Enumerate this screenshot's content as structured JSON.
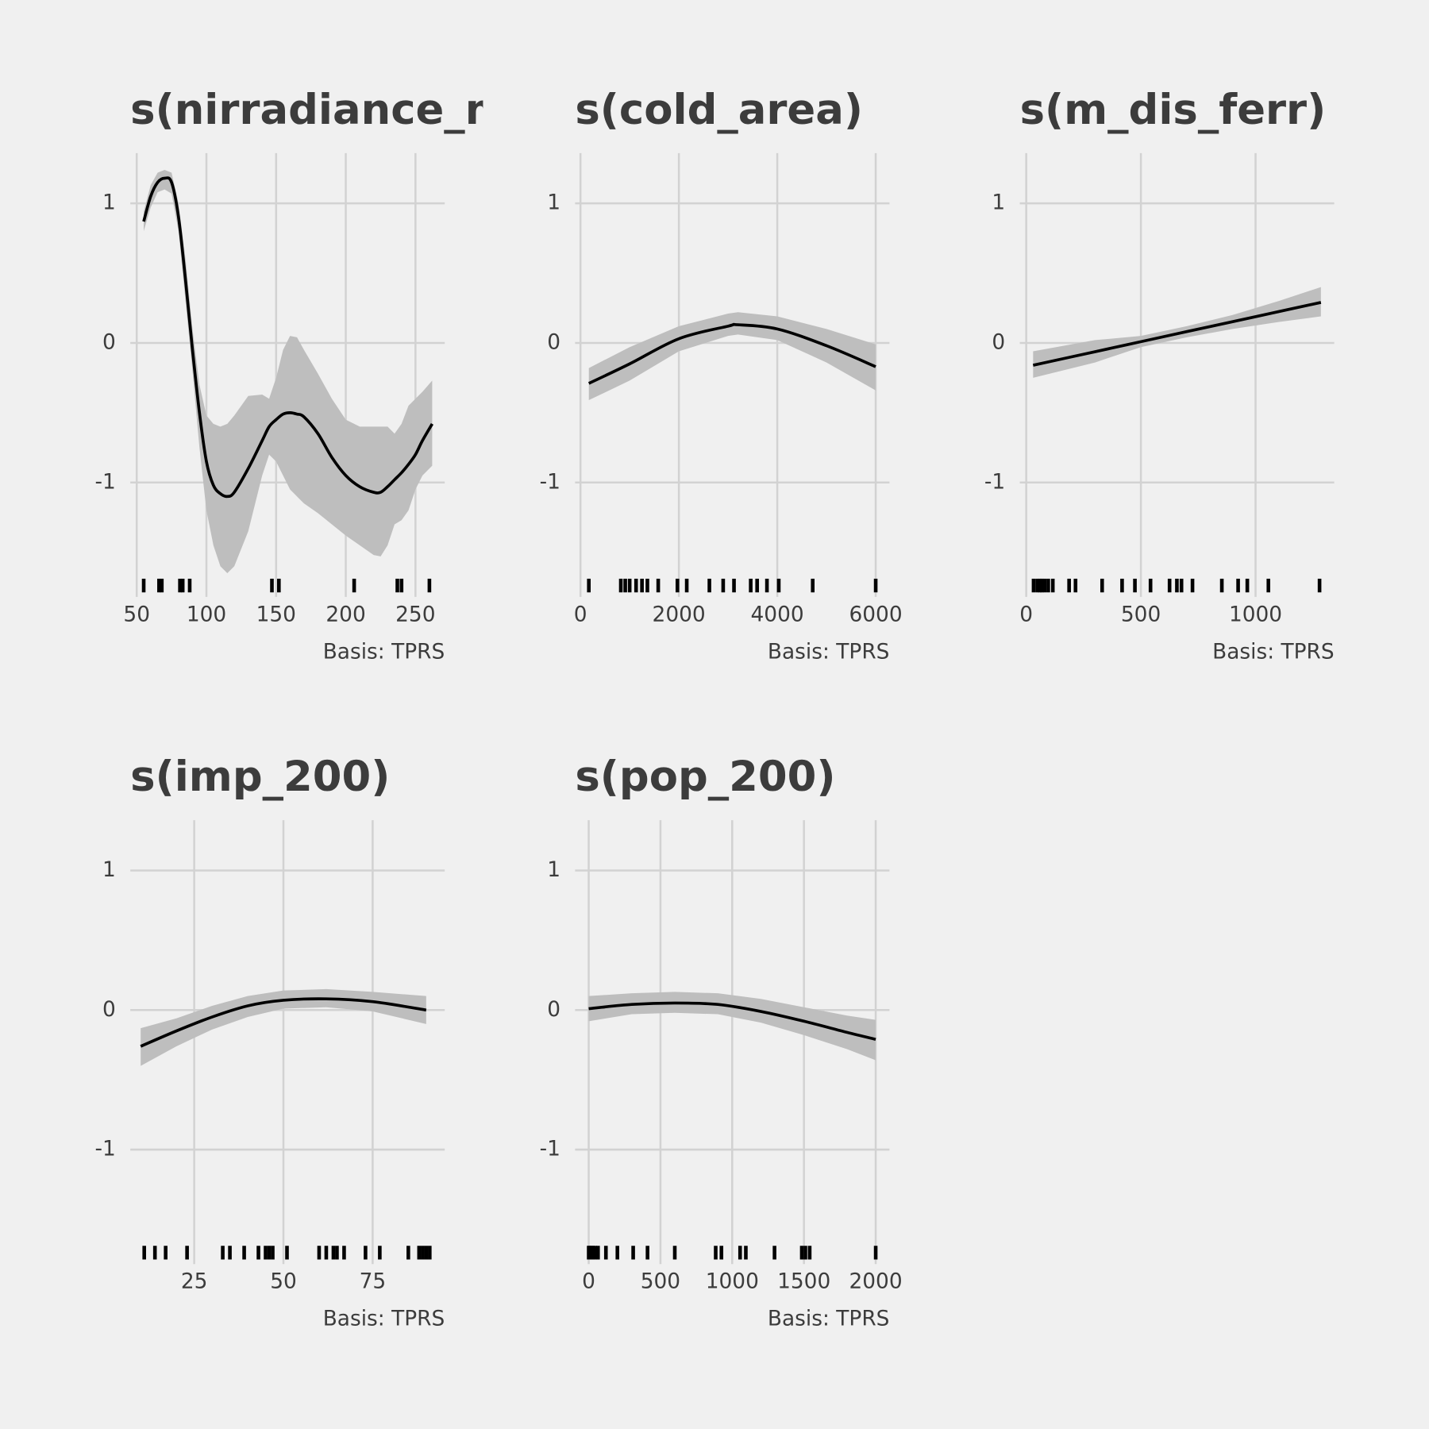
{
  "chart_data": [
    {
      "type": "line",
      "title": "s(nirradiance_me",
      "caption": "Basis: TPRS",
      "color": "#000000",
      "band_color": "#bebebe",
      "grid": true,
      "x": [
        55,
        60,
        65,
        70,
        75,
        80,
        85,
        90,
        95,
        100,
        105,
        110,
        115,
        120,
        130,
        140,
        145,
        150,
        155,
        160,
        165,
        170,
        180,
        190,
        200,
        210,
        220,
        225,
        230,
        235,
        240,
        245,
        250,
        255,
        262
      ],
      "values": [
        0.87,
        1.05,
        1.15,
        1.18,
        1.15,
        0.9,
        0.45,
        -0.05,
        -0.5,
        -0.85,
        -1.02,
        -1.08,
        -1.1,
        -1.07,
        -0.9,
        -0.7,
        -0.6,
        -0.55,
        -0.51,
        -0.5,
        -0.51,
        -0.53,
        -0.65,
        -0.82,
        -0.95,
        -1.03,
        -1.07,
        -1.07,
        -1.03,
        -0.98,
        -0.93,
        -0.87,
        -0.8,
        -0.7,
        -0.58
      ],
      "upper": [
        0.94,
        1.13,
        1.22,
        1.24,
        1.22,
        1.0,
        0.6,
        0.1,
        -0.3,
        -0.52,
        -0.58,
        -0.6,
        -0.58,
        -0.52,
        -0.38,
        -0.37,
        -0.4,
        -0.25,
        -0.05,
        0.05,
        0.04,
        -0.05,
        -0.22,
        -0.4,
        -0.55,
        -0.6,
        -0.6,
        -0.6,
        -0.6,
        -0.65,
        -0.58,
        -0.45,
        -0.4,
        -0.35,
        -0.27
      ],
      "lower": [
        0.8,
        0.97,
        1.08,
        1.1,
        1.07,
        0.8,
        0.3,
        -0.2,
        -0.75,
        -1.2,
        -1.45,
        -1.6,
        -1.65,
        -1.6,
        -1.35,
        -0.95,
        -0.8,
        -0.85,
        -0.95,
        -1.05,
        -1.1,
        -1.15,
        -1.22,
        -1.3,
        -1.38,
        -1.45,
        -1.52,
        -1.53,
        -1.45,
        -1.3,
        -1.27,
        -1.2,
        -1.05,
        -0.95,
        -0.88
      ],
      "rug": [
        55,
        66,
        68,
        81,
        83,
        88,
        147,
        152,
        206,
        237,
        240,
        260
      ],
      "xlim": [
        45.4,
        271
      ],
      "xticks": [
        50,
        100,
        150,
        200,
        250
      ],
      "ylim": [
        -1.82,
        1.36
      ],
      "yticks": [
        -1,
        0,
        1
      ]
    },
    {
      "type": "line",
      "title": "s(cold_area)",
      "caption": "Basis: TPRS",
      "color": "#000000",
      "band_color": "#bebebe",
      "grid": true,
      "x": [
        170,
        1000,
        2000,
        3000,
        3200,
        4000,
        5000,
        6000
      ],
      "values": [
        -0.29,
        -0.15,
        0.03,
        0.12,
        0.13,
        0.1,
        -0.02,
        -0.17
      ],
      "upper": [
        -0.18,
        -0.03,
        0.12,
        0.21,
        0.22,
        0.19,
        0.1,
        -0.01
      ],
      "lower": [
        -0.41,
        -0.27,
        -0.06,
        0.05,
        0.06,
        0.02,
        -0.14,
        -0.34
      ],
      "rug": [
        170,
        820,
        910,
        1000,
        1130,
        1250,
        1360,
        1580,
        1970,
        2160,
        2620,
        2900,
        3120,
        3460,
        3590,
        3790,
        4030,
        4720,
        6000
      ],
      "xlim": [
        -110,
        6280
      ],
      "xticks": [
        0,
        2000,
        4000,
        6000
      ],
      "ylim": [
        -1.82,
        1.36
      ],
      "yticks": [
        -1,
        0,
        1
      ]
    },
    {
      "type": "line",
      "title": "s(m_dis_ferr)",
      "caption": "Basis: TPRS",
      "color": "#000000",
      "band_color": "#bebebe",
      "grid": true,
      "x": [
        30,
        300,
        500,
        700,
        900,
        1100,
        1285
      ],
      "values": [
        -0.16,
        -0.063,
        0.009,
        0.081,
        0.152,
        0.224,
        0.29
      ],
      "upper": [
        -0.06,
        0.02,
        0.05,
        0.12,
        0.2,
        0.3,
        0.4
      ],
      "lower": [
        -0.25,
        -0.14,
        -0.03,
        0.04,
        0.1,
        0.15,
        0.19
      ],
      "rug": [
        32,
        48,
        60,
        68,
        80,
        96,
        116,
        187,
        215,
        331,
        418,
        474,
        542,
        625,
        657,
        677,
        725,
        853,
        924,
        964,
        1056,
        1279
      ],
      "xlim": [
        -28,
        1343
      ],
      "xticks": [
        0,
        500,
        1000
      ],
      "ylim": [
        -1.82,
        1.36
      ],
      "yticks": [
        -1,
        0,
        1
      ]
    },
    {
      "type": "line",
      "title": "s(imp_200)",
      "caption": "Basis: TPRS",
      "color": "#000000",
      "band_color": "#bebebe",
      "grid": true,
      "x": [
        10,
        20,
        30,
        40,
        50,
        62,
        75,
        90
      ],
      "values": [
        -0.26,
        -0.15,
        -0.05,
        0.03,
        0.07,
        0.08,
        0.06,
        0
      ],
      "upper": [
        -0.13,
        -0.06,
        0.03,
        0.1,
        0.14,
        0.15,
        0.13,
        0.1
      ],
      "lower": [
        -0.4,
        -0.26,
        -0.14,
        -0.05,
        0.01,
        0.02,
        -0.01,
        -0.1
      ],
      "rug": [
        11,
        14,
        17,
        23,
        33,
        35,
        39,
        43,
        45,
        46,
        47,
        51,
        60,
        62,
        64,
        65,
        67,
        73,
        77,
        85,
        88,
        89,
        90,
        91
      ],
      "xlim": [
        7.1,
        95.2
      ],
      "xticks": [
        25,
        50,
        75
      ],
      "ylim": [
        -1.82,
        1.36
      ],
      "yticks": [
        -1,
        0,
        1
      ]
    },
    {
      "type": "line",
      "title": "s(pop_200)",
      "caption": "Basis: TPRS",
      "color": "#000000",
      "band_color": "#bebebe",
      "grid": true,
      "x": [
        0,
        300,
        600,
        900,
        1200,
        1500,
        1800,
        2000
      ],
      "values": [
        0.01,
        0.04,
        0.05,
        0.04,
        -0.01,
        -0.08,
        -0.16,
        -0.21
      ],
      "upper": [
        0.1,
        0.12,
        0.13,
        0.12,
        0.08,
        0.02,
        -0.04,
        -0.07
      ],
      "lower": [
        -0.08,
        -0.03,
        -0.02,
        -0.03,
        -0.09,
        -0.18,
        -0.28,
        -0.36
      ],
      "rug": [
        0,
        5,
        20,
        30,
        45,
        65,
        120,
        200,
        310,
        410,
        600,
        885,
        925,
        1055,
        1095,
        1295,
        1485,
        1510,
        1540,
        2000
      ],
      "xlim": [
        -95,
        2096
      ],
      "xticks": [
        0,
        500,
        1000,
        1500,
        2000
      ],
      "ylim": [
        -1.82,
        1.36
      ],
      "yticks": [
        -1,
        0,
        1
      ]
    }
  ]
}
